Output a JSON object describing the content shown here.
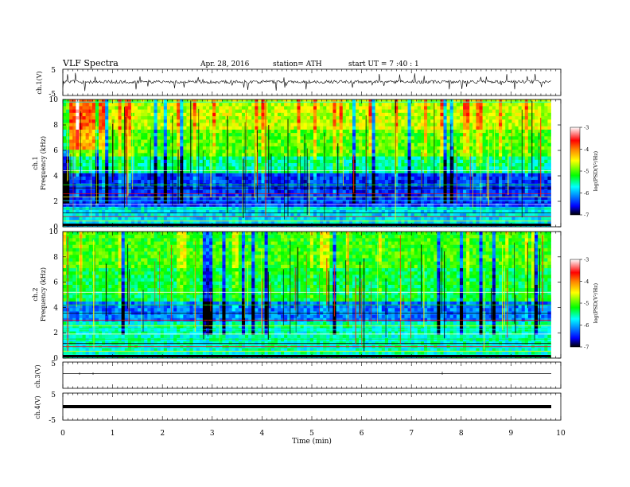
{
  "header": {
    "title": "VLF  Spectra",
    "date": "Apr. 28,  2016",
    "station": "station= ATH",
    "start": "start  UT  =   7  :40 : 1"
  },
  "chart_data": [
    {
      "type": "line",
      "id": "ch1",
      "ylabel": "ch.1(V)",
      "ylim": [
        -5,
        5
      ],
      "yticks": [
        "5",
        "-5"
      ],
      "xlim": [
        0,
        10
      ],
      "description_level": 0.2,
      "color": "#000000"
    },
    {
      "type": "heatmap",
      "id": "spec1",
      "ylabel": [
        "ch.1",
        "Frequency  (kHz)"
      ],
      "ylim": [
        0,
        10
      ],
      "yticks": [
        "0",
        "2",
        "4",
        "6",
        "8",
        "10"
      ],
      "xlim": [
        0,
        10
      ],
      "data_end_min": 9.8,
      "colorbar": {
        "label": "log(PSD(V²/Hz)",
        "ticks": [
          "-3",
          "-4",
          "-5",
          "-6",
          "-7"
        ],
        "range": [
          -7,
          -3
        ],
        "colors": [
          "#000000",
          "#0000ff",
          "#00ffff",
          "#00ff00",
          "#ffff00",
          "#ff8000",
          "#ff0000",
          "#ffffff"
        ]
      }
    },
    {
      "type": "heatmap",
      "id": "spec2",
      "ylabel": [
        "ch.2",
        "Frequency  (kHz)"
      ],
      "ylim": [
        0,
        10
      ],
      "yticks": [
        "0",
        "2",
        "4",
        "6",
        "8",
        "10"
      ],
      "xlim": [
        0,
        10
      ],
      "data_end_min": 9.8,
      "colorbar": {
        "label": "log(PSD(V²/Hz)",
        "ticks": [
          "-3",
          "-4",
          "-5",
          "-6",
          "-7"
        ],
        "range": [
          -7,
          -3
        ],
        "colors": [
          "#000000",
          "#0000ff",
          "#00ffff",
          "#00ff00",
          "#ffff00",
          "#ff8000",
          "#ff0000",
          "#ffffff"
        ]
      }
    },
    {
      "type": "line",
      "id": "ch3",
      "ylabel": "ch.3(V)",
      "ylim": [
        -5,
        5
      ],
      "yticks": [
        "5"
      ],
      "xlim": [
        0,
        10
      ],
      "level": 0.5,
      "color": "#000000"
    },
    {
      "type": "line",
      "id": "ch4",
      "ylabel": "ch.4(V)",
      "ylim": [
        -5,
        5
      ],
      "yticks": [
        "5",
        "-5"
      ],
      "xlim": [
        0,
        10
      ],
      "level": -0.2,
      "color": "#000000"
    }
  ],
  "xaxis": {
    "label": "Time  (min)",
    "ticks": [
      "0",
      "1",
      "2",
      "3",
      "4",
      "5",
      "6",
      "7",
      "8",
      "9",
      "10"
    ],
    "range": [
      0,
      10
    ]
  }
}
